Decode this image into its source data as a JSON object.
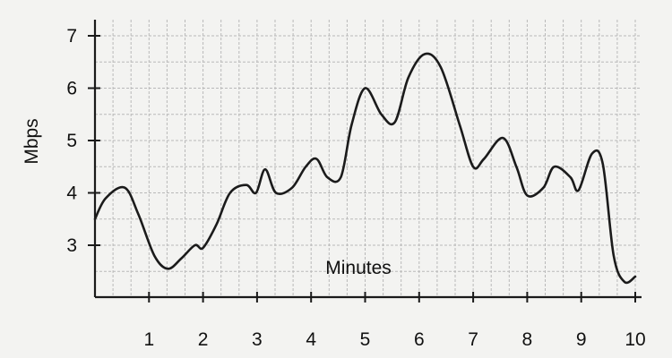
{
  "chart_data": {
    "type": "line",
    "title": "",
    "xlabel": "Minutes",
    "ylabel": "Mbps",
    "xlim": [
      0,
      10
    ],
    "ylim": [
      2,
      7.2
    ],
    "grid": true,
    "x_ticks": [
      1,
      2,
      3,
      4,
      5,
      6,
      7,
      8,
      9,
      10
    ],
    "y_ticks": [
      3,
      4,
      5,
      6,
      7
    ],
    "colors": {
      "line": "#1b1b1b",
      "grid": "#b9b9b9",
      "axis": "#1a1a1a",
      "background": "#f3f3f1"
    },
    "series": [
      {
        "x": [
          0,
          0.2,
          0.55,
          0.8,
          1.1,
          1.35,
          1.6,
          1.85,
          2.0,
          2.25,
          2.5,
          2.8,
          2.98,
          3.15,
          3.35,
          3.65,
          3.9,
          4.1,
          4.3,
          4.55,
          4.75,
          5.0,
          5.3,
          5.55,
          5.8,
          6.1,
          6.4,
          6.75,
          7.0,
          7.2,
          7.55,
          7.8,
          8.0,
          8.3,
          8.5,
          8.8,
          8.95,
          9.2,
          9.4,
          9.6,
          9.8,
          10.0
        ],
        "values": [
          3.5,
          3.9,
          4.1,
          3.6,
          2.8,
          2.55,
          2.75,
          3.0,
          2.95,
          3.4,
          4.0,
          4.15,
          4.0,
          4.45,
          4.0,
          4.1,
          4.5,
          4.65,
          4.3,
          4.3,
          5.3,
          6.0,
          5.5,
          5.35,
          6.2,
          6.65,
          6.4,
          5.3,
          4.5,
          4.65,
          5.05,
          4.5,
          3.95,
          4.1,
          4.5,
          4.3,
          4.05,
          4.75,
          4.55,
          2.8,
          2.3,
          2.4
        ]
      }
    ]
  }
}
